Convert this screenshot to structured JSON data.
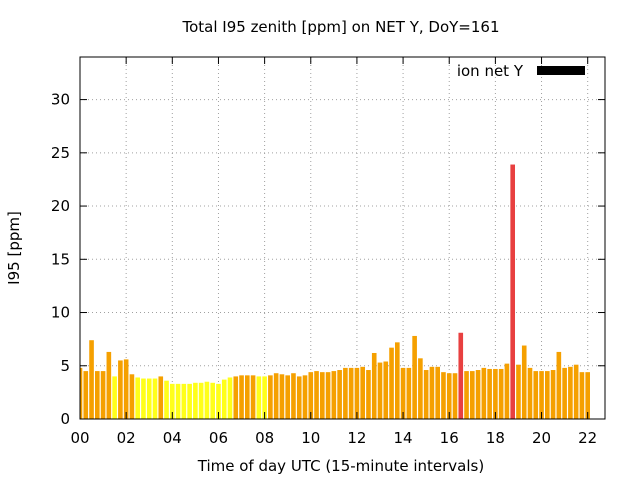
{
  "chart_data": {
    "type": "bar",
    "title": "Total I95 zenith [ppm] on NET Y, DoY=161",
    "xlabel": "Time of day UTC (15-minute intervals)",
    "ylabel": "I95 [ppm]",
    "ylim": [
      0,
      34
    ],
    "xlim": [
      0,
      22.75
    ],
    "yticks": [
      0,
      5,
      10,
      15,
      20,
      25,
      30
    ],
    "xticks": [
      "00",
      "02",
      "04",
      "06",
      "08",
      "10",
      "12",
      "14",
      "16",
      "18",
      "20",
      "22"
    ],
    "grid": true,
    "legend": {
      "label": "ion net Y",
      "color": "#000000",
      "placement": "top-right"
    },
    "colors": {
      "yellow": "#ffff1a",
      "orange": "#f5a000",
      "red": "#e84040"
    },
    "interval_hours": 0.25,
    "values": [
      4.8,
      4.5,
      7.4,
      4.5,
      4.5,
      6.3,
      4.0,
      5.5,
      5.6,
      4.2,
      3.9,
      3.8,
      3.8,
      3.8,
      4.0,
      3.6,
      3.3,
      3.3,
      3.3,
      3.3,
      3.4,
      3.4,
      3.5,
      3.4,
      3.3,
      3.7,
      3.9,
      4.0,
      4.1,
      4.1,
      4.1,
      4.0,
      4.0,
      4.1,
      4.3,
      4.2,
      4.1,
      4.3,
      4.0,
      4.1,
      4.4,
      4.5,
      4.4,
      4.4,
      4.5,
      4.6,
      4.8,
      4.8,
      4.8,
      4.9,
      4.6,
      6.2,
      5.3,
      5.4,
      6.7,
      7.2,
      4.8,
      4.8,
      7.8,
      5.7,
      4.6,
      4.9,
      4.9,
      4.4,
      4.3,
      4.3,
      8.1,
      4.5,
      4.5,
      4.6,
      4.8,
      4.7,
      4.7,
      4.7,
      5.2,
      23.9,
      5.1,
      6.9,
      4.8,
      4.5,
      4.5,
      4.5,
      4.6,
      6.3,
      4.8,
      4.9,
      5.1,
      4.4,
      4.4
    ],
    "bar_colors": [
      "orange",
      "orange",
      "orange",
      "orange",
      "orange",
      "orange",
      "yellow",
      "orange",
      "orange",
      "orange",
      "yellow",
      "yellow",
      "yellow",
      "yellow",
      "orange",
      "yellow",
      "yellow",
      "yellow",
      "yellow",
      "yellow",
      "yellow",
      "yellow",
      "yellow",
      "yellow",
      "yellow",
      "yellow",
      "yellow",
      "orange",
      "orange",
      "orange",
      "orange",
      "yellow",
      "yellow",
      "orange",
      "orange",
      "orange",
      "orange",
      "orange",
      "orange",
      "orange",
      "orange",
      "orange",
      "orange",
      "orange",
      "orange",
      "orange",
      "orange",
      "orange",
      "orange",
      "orange",
      "orange",
      "orange",
      "orange",
      "orange",
      "orange",
      "orange",
      "orange",
      "orange",
      "orange",
      "orange",
      "orange",
      "orange",
      "orange",
      "orange",
      "orange",
      "orange",
      "red",
      "orange",
      "orange",
      "orange",
      "orange",
      "orange",
      "orange",
      "orange",
      "orange",
      "red",
      "orange",
      "orange",
      "orange",
      "orange",
      "orange",
      "orange",
      "orange",
      "orange",
      "orange",
      "orange",
      "orange",
      "orange",
      "orange"
    ]
  }
}
